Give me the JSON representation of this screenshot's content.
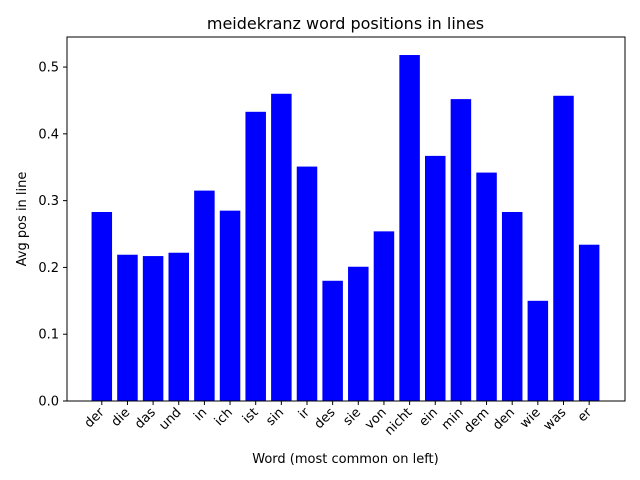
{
  "chart_data": {
    "type": "bar",
    "title": "meidekranz word positions in lines",
    "xlabel": "Word (most common on left)",
    "ylabel": "Avg pos in line",
    "categories": [
      "der",
      "die",
      "das",
      "und",
      "in",
      "ich",
      "ist",
      "sin",
      "ir",
      "des",
      "sie",
      "von",
      "nicht",
      "ein",
      "min",
      "dem",
      "den",
      "wie",
      "was",
      "er"
    ],
    "values": [
      0.283,
      0.219,
      0.217,
      0.222,
      0.315,
      0.285,
      0.433,
      0.46,
      0.351,
      0.18,
      0.201,
      0.254,
      0.518,
      0.367,
      0.452,
      0.342,
      0.283,
      0.15,
      0.457,
      0.234
    ],
    "ylim": [
      0,
      0.545
    ],
    "yticks": [
      0.0,
      0.1,
      0.2,
      0.3,
      0.4,
      0.5
    ],
    "ytick_labels": [
      "0.0",
      "0.1",
      "0.2",
      "0.3",
      "0.4",
      "0.5"
    ],
    "bar_color": "#0000ff",
    "grid": false
  }
}
